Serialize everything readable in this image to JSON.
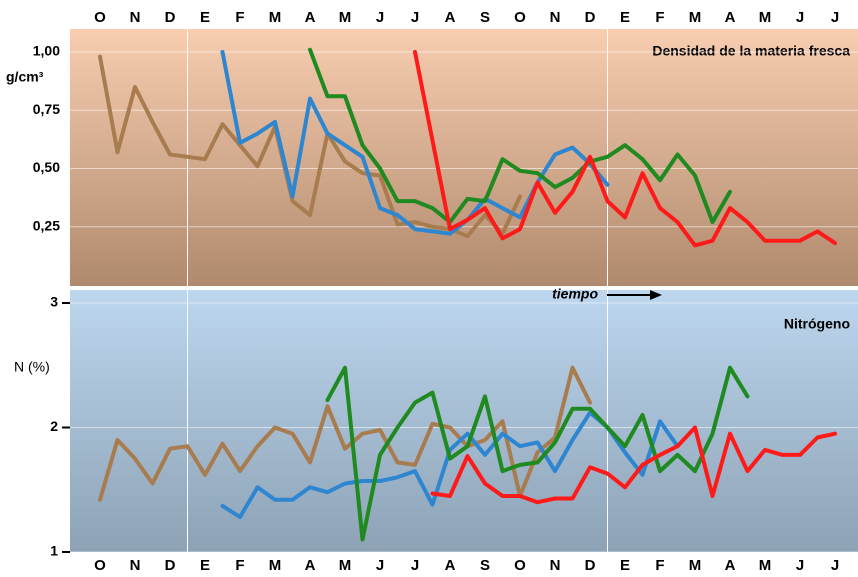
{
  "chart_data": [
    {
      "type": "line",
      "title": "Densidad de la materia fresca",
      "y_label": "g/cm³",
      "categories": [
        "O",
        null,
        "N",
        null,
        "D",
        null,
        "E",
        null,
        "F",
        null,
        "M",
        null,
        "A",
        null,
        "M",
        null,
        "J",
        null,
        "J",
        null,
        "A",
        null,
        "S",
        null,
        "O",
        null,
        "N",
        null,
        "D",
        null,
        "E",
        null,
        "F",
        null,
        "M",
        null,
        "A",
        null,
        "M",
        null,
        "J",
        null,
        "J",
        null
      ],
      "ylim": [
        0,
        1.1
      ],
      "yticks": [
        {
          "value": 1,
          "label": "1,00"
        },
        {
          "value": 0.75,
          "label": "0,75"
        },
        {
          "value": 0.5,
          "label": "0,50"
        },
        {
          "value": 0.25,
          "label": "0,25"
        }
      ],
      "grid": true,
      "series": [
        {
          "color": "#a87c4f",
          "values": [
            0.98,
            0.57,
            0.85,
            0.7,
            0.56,
            0.55,
            0.54,
            0.69,
            0.6,
            0.51,
            0.68,
            0.36,
            0.3,
            0.65,
            0.53,
            0.48,
            0.47,
            0.26,
            0.27,
            0.25,
            0.24,
            0.21,
            0.3,
            0.22,
            0.38,
            null,
            null,
            null,
            null,
            null,
            null,
            null,
            null,
            null,
            null,
            null,
            null,
            null,
            null,
            null,
            null,
            null,
            null,
            null
          ]
        },
        {
          "color": "#2f86d0",
          "values": [
            null,
            null,
            null,
            null,
            null,
            null,
            null,
            1.0,
            0.61,
            0.65,
            0.7,
            0.38,
            0.8,
            0.65,
            0.6,
            0.55,
            0.33,
            0.3,
            0.24,
            0.23,
            0.22,
            0.28,
            0.37,
            0.33,
            0.29,
            0.44,
            0.56,
            0.59,
            0.52,
            0.43,
            null,
            null,
            null,
            null,
            null,
            null,
            null,
            null,
            null,
            null,
            null,
            null,
            null,
            null
          ]
        },
        {
          "color": "#1f8a1f",
          "values": [
            null,
            null,
            null,
            null,
            null,
            null,
            null,
            null,
            null,
            null,
            null,
            null,
            1.01,
            0.81,
            0.81,
            0.6,
            0.5,
            0.36,
            0.36,
            0.33,
            0.27,
            0.37,
            0.36,
            0.54,
            0.49,
            0.48,
            0.42,
            0.46,
            0.53,
            0.55,
            0.6,
            0.54,
            0.45,
            0.56,
            0.47,
            0.27,
            0.4,
            null,
            null,
            null,
            null,
            null,
            null,
            null
          ]
        },
        {
          "color": "#ff1a1a",
          "values": [
            null,
            null,
            null,
            null,
            null,
            null,
            null,
            null,
            null,
            null,
            null,
            null,
            null,
            null,
            null,
            null,
            null,
            null,
            1.0,
            0.62,
            0.24,
            0.28,
            0.33,
            0.2,
            0.24,
            0.44,
            0.31,
            0.4,
            0.55,
            0.36,
            0.29,
            0.48,
            0.33,
            0.27,
            0.17,
            0.19,
            0.33,
            0.27,
            0.19,
            0.19,
            0.19,
            0.23,
            0.18,
            null
          ]
        }
      ]
    },
    {
      "type": "line",
      "title": "Nitrógeno",
      "y_label": "N (%)",
      "annotation": "tiempo",
      "categories": [
        "O",
        null,
        "N",
        null,
        "D",
        null,
        "E",
        null,
        "F",
        null,
        "M",
        null,
        "A",
        null,
        "M",
        null,
        "J",
        null,
        "J",
        null,
        "A",
        null,
        "S",
        null,
        "O",
        null,
        "N",
        null,
        "D",
        null,
        "E",
        null,
        "F",
        null,
        "M",
        null,
        "A",
        null,
        "M",
        null,
        "J",
        null,
        "J",
        null
      ],
      "ylim": [
        1,
        3
      ],
      "yticks": [
        1,
        2,
        3
      ],
      "grid": true,
      "series": [
        {
          "color": "#a87c4f",
          "values": [
            1.42,
            1.9,
            1.75,
            1.55,
            1.83,
            1.85,
            1.62,
            1.87,
            1.65,
            1.85,
            2.0,
            1.95,
            1.72,
            2.17,
            1.83,
            1.95,
            1.98,
            1.72,
            1.7,
            2.03,
            2.0,
            1.85,
            1.9,
            2.05,
            1.45,
            1.8,
            1.92,
            2.48,
            2.2,
            null,
            null,
            null,
            null,
            null,
            null,
            null,
            null,
            null,
            null,
            null,
            null,
            null,
            null,
            null
          ]
        },
        {
          "color": "#2f86d0",
          "values": [
            null,
            null,
            null,
            null,
            null,
            null,
            null,
            1.37,
            1.28,
            1.52,
            1.42,
            1.42,
            1.52,
            1.48,
            1.55,
            1.57,
            1.57,
            1.6,
            1.65,
            1.38,
            1.82,
            1.95,
            1.78,
            1.95,
            1.85,
            1.88,
            1.65,
            1.9,
            2.12,
            2.0,
            1.8,
            1.62,
            2.05,
            1.85,
            null,
            null,
            null,
            null,
            null,
            null,
            null,
            null,
            null,
            null
          ]
        },
        {
          "color": "#1f8a1f",
          "values": [
            null,
            null,
            null,
            null,
            null,
            null,
            null,
            null,
            null,
            null,
            null,
            null,
            null,
            2.22,
            2.48,
            1.1,
            1.78,
            2.0,
            2.2,
            2.28,
            1.75,
            1.85,
            2.25,
            1.65,
            1.7,
            1.72,
            1.88,
            2.15,
            2.15,
            2.0,
            1.85,
            2.1,
            1.65,
            1.78,
            1.65,
            1.95,
            2.48,
            2.25,
            null,
            null,
            null,
            null,
            null,
            null
          ]
        },
        {
          "color": "#ff1a1a",
          "values": [
            null,
            null,
            null,
            null,
            null,
            null,
            null,
            null,
            null,
            null,
            null,
            null,
            null,
            null,
            null,
            null,
            null,
            null,
            null,
            1.47,
            1.45,
            1.77,
            1.55,
            1.45,
            1.45,
            1.4,
            1.43,
            1.43,
            1.68,
            1.63,
            1.52,
            1.7,
            1.78,
            1.85,
            2.0,
            1.45,
            1.95,
            1.65,
            1.82,
            1.78,
            1.78,
            1.92,
            1.95,
            null
          ]
        }
      ]
    }
  ]
}
